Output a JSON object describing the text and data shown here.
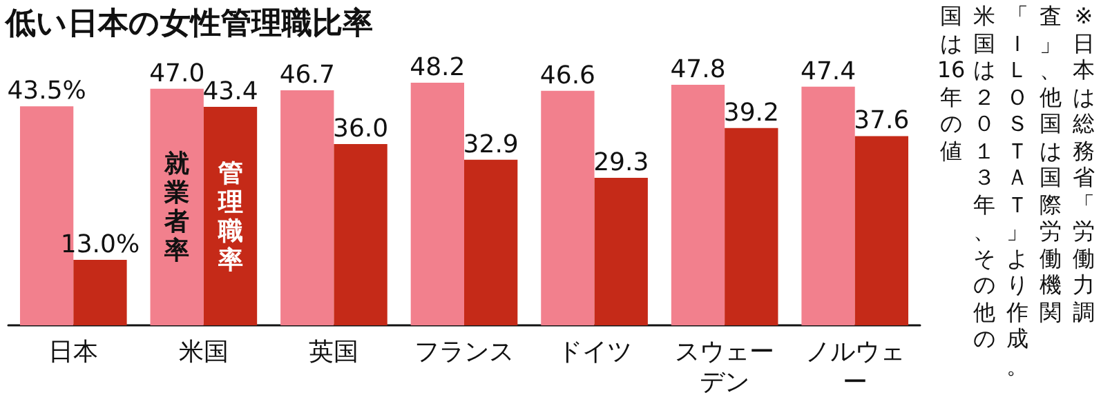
{
  "chart_data": {
    "type": "bar",
    "title": "低い日本の女性管理職比率",
    "categories": [
      "日本",
      "米国",
      "英国",
      "フランス",
      "ドイツ",
      "スウェーデン",
      "ノルウェー"
    ],
    "series": [
      {
        "name": "就業者率",
        "color": "#f2808d",
        "values": [
          43.5,
          47.0,
          46.7,
          48.2,
          46.6,
          47.8,
          47.4
        ],
        "value_labels": [
          "43.5%",
          "47.0",
          "46.7",
          "48.2",
          "46.6",
          "47.8",
          "47.4"
        ]
      },
      {
        "name": "管理職率",
        "color": "#c52a18",
        "values": [
          13.0,
          43.4,
          36.0,
          32.9,
          29.3,
          39.2,
          37.6
        ],
        "value_labels": [
          "13.0%",
          "43.4",
          "36.0",
          "32.9",
          "29.3",
          "39.2",
          "37.6"
        ]
      }
    ],
    "annotations": [
      "※日本は総務省「労働力調",
      "査」、他国は国際労働機関",
      "「ＩＬＯＳＴＡＴ」より作成。",
      "米国は２０１３年、その他の",
      "国は16年の値"
    ],
    "grid": false,
    "legend": false
  }
}
